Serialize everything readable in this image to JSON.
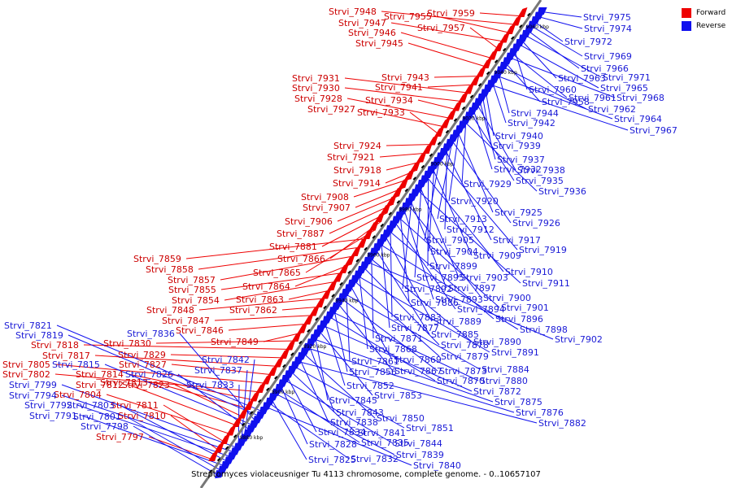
{
  "caption": "Streptomyces violaceusniger Tu 4113 chromosome, complete genome. - 0..10657107",
  "legend": {
    "forward_label": "Forward",
    "reverse_label": "Reverse",
    "forward_color": "#ee0000",
    "reverse_color": "#1010ee"
  },
  "ticks": [
    "8880 kbp",
    "8900 kbp",
    "8920 kbp",
    "8940 kbp",
    "8960 kbp",
    "8980 kbp",
    "9000 kbp",
    "9020 kbp",
    "9040 kbp",
    "9060 kbp"
  ],
  "forward_genes": [
    "Strvi_7959",
    "Strvi_7948",
    "Strvi_7955",
    "Strvi_7947",
    "Strvi_7957",
    "Strvi_7946",
    "Strvi_7945",
    "Strvi_7943",
    "Strvi_7941",
    "Strvi_7931",
    "Strvi_7930",
    "Strvi_7934",
    "Strvi_7928",
    "Strvi_7927",
    "Strvi_7933",
    "Strvi_7924",
    "Strvi_7921",
    "Strvi_7918",
    "Strvi_7914",
    "Strvi_7908",
    "Strvi_7907",
    "Strvi_7906",
    "Strvi_7887",
    "Strvi_7881",
    "Strvi_7866",
    "Strvi_7865",
    "Strvi_7859",
    "Strvi_7858",
    "Strvi_7857",
    "Strvi_7864",
    "Strvi_7855",
    "Strvi_7854",
    "Strvi_7863",
    "Strvi_7848",
    "Strvi_7862",
    "Strvi_7847",
    "Strvi_7846",
    "Strvi_7849",
    "Strvi_7830",
    "Strvi_7818",
    "Strvi_7829",
    "Strvi_7817",
    "Strvi_7827",
    "Strvi_7805",
    "Strvi_7802",
    "Strvi_7814",
    "Strvi_7813",
    "Strvi_7823",
    "Strvi_7812",
    "Strvi_7804",
    "Strvi_7811",
    "Strvi_7810",
    "Strvi_7797"
  ],
  "reverse_genes": [
    "Strvi_7975",
    "Strvi_7974",
    "Strvi_7972",
    "Strvi_7969",
    "Strvi_7966",
    "Strvi_7971",
    "Strvi_7963",
    "Strvi_7965",
    "Strvi_7960",
    "Strvi_7961",
    "Strvi_7968",
    "Strvi_7958",
    "Strvi_7962",
    "Strvi_7944",
    "Strvi_7964",
    "Strvi_7942",
    "Strvi_7967",
    "Strvi_7940",
    "Strvi_7939",
    "Strvi_7937",
    "Strvi_7938",
    "Strvi_7932",
    "Strvi_7935",
    "Strvi_7929",
    "Strvi_7936",
    "Strvi_7920",
    "Strvi_7925",
    "Strvi_7913",
    "Strvi_7926",
    "Strvi_7912",
    "Strvi_7917",
    "Strvi_7905",
    "Strvi_7919",
    "Strvi_7904",
    "Strvi_7909",
    "Strvi_7899",
    "Strvi_7910",
    "Strvi_7895",
    "Strvi_7903",
    "Strvi_7911",
    "Strvi_7892",
    "Strvi_7897",
    "Strvi_7900",
    "Strvi_7893",
    "Strvi_7886",
    "Strvi_7901",
    "Strvi_7894",
    "Strvi_7883",
    "Strvi_7896",
    "Strvi_7889",
    "Strvi_7877",
    "Strvi_7898",
    "Strvi_7885",
    "Strvi_7871",
    "Strvi_7890",
    "Strvi_7902",
    "Strvi_7878",
    "Strvi_7868",
    "Strvi_7891",
    "Strvi_7879",
    "Strvi_7869",
    "Strvi_7861",
    "Strvi_7884",
    "Strvi_7873",
    "Strvi_7867",
    "Strvi_7856",
    "Strvi_7880",
    "Strvi_7870",
    "Strvi_7852",
    "Strvi_7872",
    "Strvi_7853",
    "Strvi_7845",
    "Strvi_7875",
    "Strvi_7843",
    "Strvi_7876",
    "Strvi_7850",
    "Strvi_7838",
    "Strvi_7882",
    "Strvi_7851",
    "Strvi_7841",
    "Strvi_7834",
    "Strvi_7844",
    "Strvi_7828",
    "Strvi_7835",
    "Strvi_7839",
    "Strvi_7825",
    "Strvi_7832",
    "Strvi_7840",
    "Strvi_7821",
    "Strvi_7819",
    "Strvi_7836",
    "Strvi_7815",
    "Strvi_7826",
    "Strvi_7842",
    "Strvi_7837",
    "Strvi_7833",
    "Strvi_7799",
    "Strvi_7794",
    "Strvi_7792",
    "Strvi_7803",
    "Strvi_7791",
    "Strvi_7801",
    "Strvi_7798"
  ]
}
